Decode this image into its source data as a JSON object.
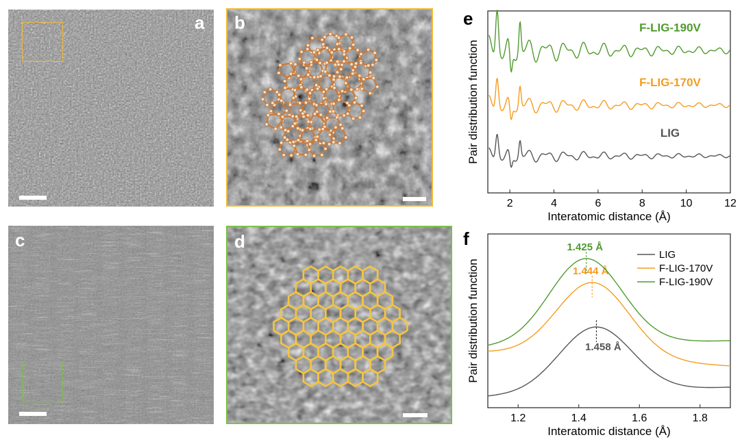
{
  "panels": {
    "a": {
      "letter": "a"
    },
    "b": {
      "letter": "b"
    },
    "c": {
      "letter": "c"
    },
    "d": {
      "letter": "d"
    },
    "e": {
      "letter": "e"
    },
    "f": {
      "letter": "f"
    }
  },
  "colors": {
    "lig": "#555555",
    "f170": "#f59c1f",
    "f190": "#4f9a2e",
    "roi_yellow": "#f2bb3a",
    "roi_green": "#7cc04a",
    "overlay_orange": "#c77b3f",
    "overlay_gold": "#f4c542"
  },
  "chart_data": [
    {
      "panel": "e",
      "type": "line",
      "xlabel": "Interatomic distance (Å)",
      "ylabel": "Pair distribution function",
      "xlim": [
        1,
        12
      ],
      "xticks": [
        2,
        4,
        6,
        8,
        10,
        12
      ],
      "series": [
        {
          "name": "F-LIG-190V",
          "color": "#4f9a2e",
          "offset": 2.0
        },
        {
          "name": "F-LIG-170V",
          "color": "#f59c1f",
          "offset": 1.0
        },
        {
          "name": "LIG",
          "color": "#555555",
          "offset": 0.0
        }
      ]
    },
    {
      "panel": "f",
      "type": "line",
      "xlabel": "Interatomic distance (Å)",
      "ylabel": "Pair distribution function",
      "xlim": [
        1.1,
        1.9
      ],
      "xticks": [
        1.2,
        1.4,
        1.6,
        1.8
      ],
      "legend": "top-right",
      "series": [
        {
          "name": "LIG",
          "color": "#555555",
          "peak": 1.458,
          "peak_label": "1.458 Å"
        },
        {
          "name": "F-LIG-170V",
          "color": "#f59c1f",
          "peak": 1.444,
          "peak_label": "1.444 Å"
        },
        {
          "name": "F-LIG-190V",
          "color": "#4f9a2e",
          "peak": 1.425,
          "peak_label": "1.425 Å"
        }
      ]
    }
  ]
}
